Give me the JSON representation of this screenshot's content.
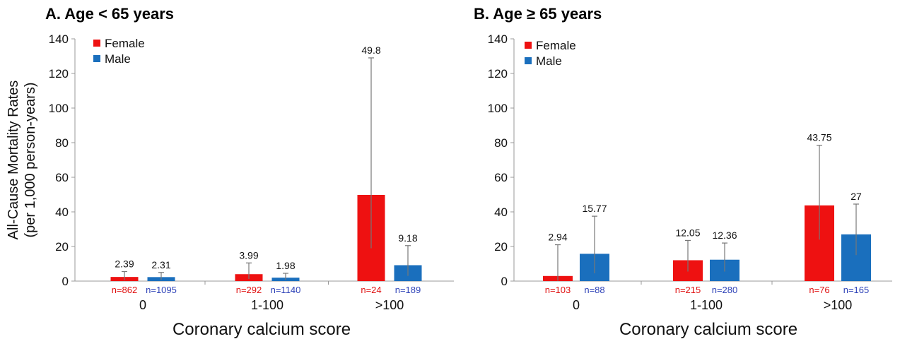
{
  "chart_data": [
    {
      "type": "bar",
      "title": "A. Age < 65 years",
      "xlabel": "Coronary calcium score",
      "ylabel": [
        "All-Cause Mortality Rates",
        "(per 1,000 person-years)"
      ],
      "ylim": [
        0,
        140
      ],
      "yticks": [
        0,
        20,
        40,
        60,
        80,
        100,
        120,
        140
      ],
      "legend_position": "top-left",
      "categories": [
        "0",
        "1-100",
        ">100"
      ],
      "series": [
        {
          "name": "Female",
          "color": "#ee1111",
          "values": [
            2.39,
            3.99,
            49.8
          ],
          "labels": [
            "2.39",
            "3.99",
            "49.8"
          ],
          "error_low": [
            0.5,
            1.2,
            19
          ],
          "error_high": [
            5.5,
            10.5,
            129
          ],
          "n_labels": [
            "n=862",
            "n=292",
            "n=24"
          ]
        },
        {
          "name": "Male",
          "color": "#1a6fbd",
          "values": [
            2.31,
            1.98,
            9.18
          ],
          "labels": [
            "2.31",
            "1.98",
            "9.18"
          ],
          "error_low": [
            0.7,
            0.6,
            3
          ],
          "error_high": [
            5.0,
            4.5,
            20.5
          ],
          "n_labels": [
            "n=1095",
            "n=1140",
            "n=189"
          ]
        }
      ]
    },
    {
      "type": "bar",
      "title": "B. Age ≥ 65 years",
      "xlabel": "Coronary calcium score",
      "ylabel": [],
      "ylim": [
        0,
        140
      ],
      "yticks": [
        0,
        20,
        40,
        60,
        80,
        100,
        120,
        140
      ],
      "legend_position": "top-left",
      "categories": [
        "0",
        "1-100",
        ">100"
      ],
      "series": [
        {
          "name": "Female",
          "color": "#ee1111",
          "values": [
            2.94,
            12.05,
            43.75
          ],
          "labels": [
            "2.94",
            "12.05",
            "43.75"
          ],
          "error_low": [
            0.2,
            5.5,
            24
          ],
          "error_high": [
            21,
            23.5,
            78.5
          ],
          "n_labels": [
            "n=103",
            "n=215",
            "n=76"
          ]
        },
        {
          "name": "Male",
          "color": "#1a6fbd",
          "values": [
            15.77,
            12.36,
            27
          ],
          "labels": [
            "15.77",
            "12.36",
            "27"
          ],
          "error_low": [
            4.5,
            5.5,
            15
          ],
          "error_high": [
            37.5,
            22,
            44.5
          ],
          "n_labels": [
            "n=88",
            "n=280",
            "n=165"
          ]
        }
      ]
    }
  ],
  "colors": {
    "female": "#ee1111",
    "male": "#1a6fbd",
    "female_n_text": "#e01010",
    "male_n_text": "#2f43b8"
  }
}
